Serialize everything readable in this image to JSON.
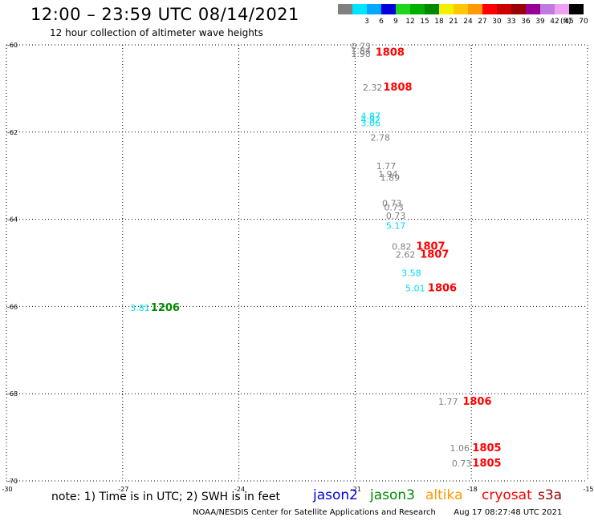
{
  "header": {
    "title": "12:00 – 23:59 UTC 08/14/2021",
    "subtitle": "12 hour collection of altimeter wave heights"
  },
  "color_scale": {
    "units": "(ft)",
    "swatches": [
      {
        "color": "#808080",
        "label": ""
      },
      {
        "color": "#00e5ff",
        "label": "3"
      },
      {
        "color": "#00a8ff",
        "label": "6"
      },
      {
        "color": "#0000dd",
        "label": "9"
      },
      {
        "color": "#1fd61f",
        "label": "12"
      },
      {
        "color": "#00b000",
        "label": "15"
      },
      {
        "color": "#008800",
        "label": "18"
      },
      {
        "color": "#f0f000",
        "label": "21"
      },
      {
        "color": "#ffc800",
        "label": "24"
      },
      {
        "color": "#ff9900",
        "label": "27"
      },
      {
        "color": "#ff0000",
        "label": "30"
      },
      {
        "color": "#cc0000",
        "label": "33"
      },
      {
        "color": "#990000",
        "label": "36"
      },
      {
        "color": "#990099",
        "label": "39"
      },
      {
        "color": "#c07be0",
        "label": "42"
      },
      {
        "color": "#f0a0f0",
        "label": "45"
      },
      {
        "color": "#000000",
        "label": "70"
      }
    ]
  },
  "map": {
    "lon_ticks": [
      -30,
      -27,
      -24,
      -21,
      -18,
      -15
    ],
    "lat_ticks": [
      -60,
      -62,
      -64,
      -66,
      -68,
      -70
    ],
    "lon_tick_labels": [
      "-30",
      "-27",
      "-24",
      "-21",
      "-18",
      "-15"
    ],
    "lat_tick_labels": [
      "-60",
      "-62",
      "-64",
      "-66",
      "-68",
      "-70"
    ],
    "lon_range": [
      -30,
      -15
    ],
    "lat_range": [
      -60,
      -70
    ],
    "observations": [
      {
        "text": "0.73",
        "color": "#808080",
        "lon": -20.85,
        "lat": -60.1,
        "kind": "val"
      },
      {
        "text": "1.84",
        "color": "#808080",
        "lon": -20.85,
        "lat": -60.2,
        "kind": "val"
      },
      {
        "text": "1.98",
        "color": "#808080",
        "lon": -20.85,
        "lat": -60.28,
        "kind": "val"
      },
      {
        "text": "1808",
        "color": "#ff0000",
        "lon": -20.1,
        "lat": -60.25,
        "kind": "code"
      },
      {
        "text": "2.32",
        "color": "#808080",
        "lon": -20.55,
        "lat": -61.05,
        "kind": "val"
      },
      {
        "text": "1808",
        "color": "#ff0000",
        "lon": -19.9,
        "lat": -61.05,
        "kind": "code"
      },
      {
        "text": "4.87",
        "color": "#00ddee",
        "lon": -20.6,
        "lat": -61.7,
        "kind": "val"
      },
      {
        "text": "4.92",
        "color": "#00ddee",
        "lon": -20.6,
        "lat": -61.78,
        "kind": "val"
      },
      {
        "text": "3.06",
        "color": "#00ddee",
        "lon": -20.6,
        "lat": -61.87,
        "kind": "val"
      },
      {
        "text": "2.78",
        "color": "#808080",
        "lon": -20.35,
        "lat": -62.2,
        "kind": "val"
      },
      {
        "text": "1.77",
        "color": "#808080",
        "lon": -20.2,
        "lat": -62.85,
        "kind": "val"
      },
      {
        "text": "1.94",
        "color": "#808080",
        "lon": -20.15,
        "lat": -63.03,
        "kind": "val"
      },
      {
        "text": "1.89",
        "color": "#808080",
        "lon": -20.1,
        "lat": -63.12,
        "kind": "val"
      },
      {
        "text": "0.73",
        "color": "#808080",
        "lon": -20.05,
        "lat": -63.7,
        "kind": "val"
      },
      {
        "text": "0.73",
        "color": "#808080",
        "lon": -20.0,
        "lat": -63.8,
        "kind": "val"
      },
      {
        "text": "0.73",
        "color": "#808080",
        "lon": -19.95,
        "lat": -63.99,
        "kind": "val"
      },
      {
        "text": "5.17",
        "color": "#00ddee",
        "lon": -19.95,
        "lat": -64.22,
        "kind": "val"
      },
      {
        "text": "0.82",
        "color": "#808080",
        "lon": -19.8,
        "lat": -64.7,
        "kind": "val"
      },
      {
        "text": "2.62",
        "color": "#808080",
        "lon": -19.7,
        "lat": -64.88,
        "kind": "val"
      },
      {
        "text": "1807",
        "color": "#ff0000",
        "lon": -19.05,
        "lat": -64.7,
        "kind": "code"
      },
      {
        "text": "1807",
        "color": "#ff0000",
        "lon": -18.95,
        "lat": -64.88,
        "kind": "code"
      },
      {
        "text": "3.58",
        "color": "#00ddee",
        "lon": -19.55,
        "lat": -65.3,
        "kind": "val"
      },
      {
        "text": "5.01",
        "color": "#00ddee",
        "lon": -19.45,
        "lat": -65.65,
        "kind": "val"
      },
      {
        "text": "1806",
        "color": "#ff0000",
        "lon": -18.75,
        "lat": -65.65,
        "kind": "code"
      },
      {
        "text": "3.81",
        "color": "#00ddee",
        "lon": -26.55,
        "lat": -66.1,
        "kind": "val"
      },
      {
        "text": "1206",
        "color": "#008800",
        "lon": -25.9,
        "lat": -66.1,
        "kind": "code"
      },
      {
        "text": "1.77",
        "color": "#808080",
        "lon": -18.6,
        "lat": -68.25,
        "kind": "val"
      },
      {
        "text": "1806",
        "color": "#ff0000",
        "lon": -17.85,
        "lat": -68.25,
        "kind": "code"
      },
      {
        "text": "1.06",
        "color": "#808080",
        "lon": -18.3,
        "lat": -69.32,
        "kind": "val"
      },
      {
        "text": "1805",
        "color": "#ff0000",
        "lon": -17.6,
        "lat": -69.32,
        "kind": "code"
      },
      {
        "text": "0.73",
        "color": "#808080",
        "lon": -18.25,
        "lat": -69.67,
        "kind": "val"
      },
      {
        "text": "1805",
        "color": "#ff0000",
        "lon": -17.6,
        "lat": -69.67,
        "kind": "code"
      }
    ]
  },
  "footer": {
    "note": "note: 1) Time is in UTC; 2) SWH is in feet",
    "legend": [
      {
        "label": "jason2",
        "color": "#0000dd"
      },
      {
        "label": "jason3",
        "color": "#008800"
      },
      {
        "label": "altika",
        "color": "#ff9900"
      },
      {
        "label": "cryosat",
        "color": "#ff0000"
      },
      {
        "label": "s3a",
        "color": "#990000"
      }
    ],
    "credit": "NOAA/NESDIS Center for Satellite Applications and Research",
    "timestamp": "Aug 17 08:27:48 UTC 2021"
  }
}
